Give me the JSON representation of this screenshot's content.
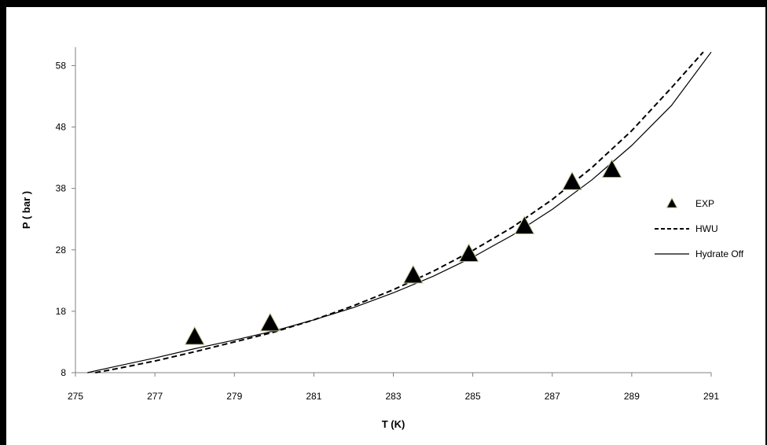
{
  "chart_data": {
    "type": "scatter",
    "title": "",
    "xlabel": "T (K)",
    "ylabel": "P ( bar )",
    "xlim": [
      275,
      291
    ],
    "ylim": [
      8,
      61
    ],
    "x_ticks": [
      275,
      277,
      279,
      281,
      283,
      285,
      287,
      289,
      291
    ],
    "y_ticks": [
      8,
      18,
      28,
      38,
      48,
      58
    ],
    "grid": false,
    "legend_position": "right",
    "colors": {
      "marker_fill": "#000000",
      "marker_edge": "#c8c89a",
      "line": "#000000"
    },
    "series": [
      {
        "name": "EXP",
        "kind": "scatter",
        "x": [
          278.0,
          279.9,
          283.5,
          284.9,
          286.3,
          287.5,
          288.5
        ],
        "y": [
          13.8,
          16.0,
          23.8,
          27.3,
          31.8,
          39.0,
          41.0
        ]
      },
      {
        "name": "HWU",
        "kind": "line",
        "dash": "dashed",
        "x": [
          275.5,
          276,
          277,
          278,
          279,
          280,
          281,
          282,
          283,
          284,
          285,
          286,
          287,
          288,
          289,
          290,
          290.8
        ],
        "y": [
          8.0,
          8.6,
          9.9,
          11.4,
          13.0,
          14.6,
          16.6,
          18.9,
          21.5,
          24.5,
          27.9,
          31.7,
          36.2,
          41.4,
          47.4,
          54.4,
          60.2
        ]
      },
      {
        "name": "Hydrate Off",
        "kind": "line",
        "dash": "solid",
        "x": [
          275.3,
          276,
          277,
          278,
          279,
          280,
          281,
          282,
          283,
          284,
          285,
          286,
          287,
          288,
          289,
          290,
          291
        ],
        "y": [
          8.0,
          9.0,
          10.4,
          11.9,
          13.3,
          14.8,
          16.6,
          18.6,
          21.0,
          23.7,
          26.8,
          30.4,
          34.6,
          39.4,
          45.0,
          51.5,
          60.2
        ]
      }
    ]
  }
}
